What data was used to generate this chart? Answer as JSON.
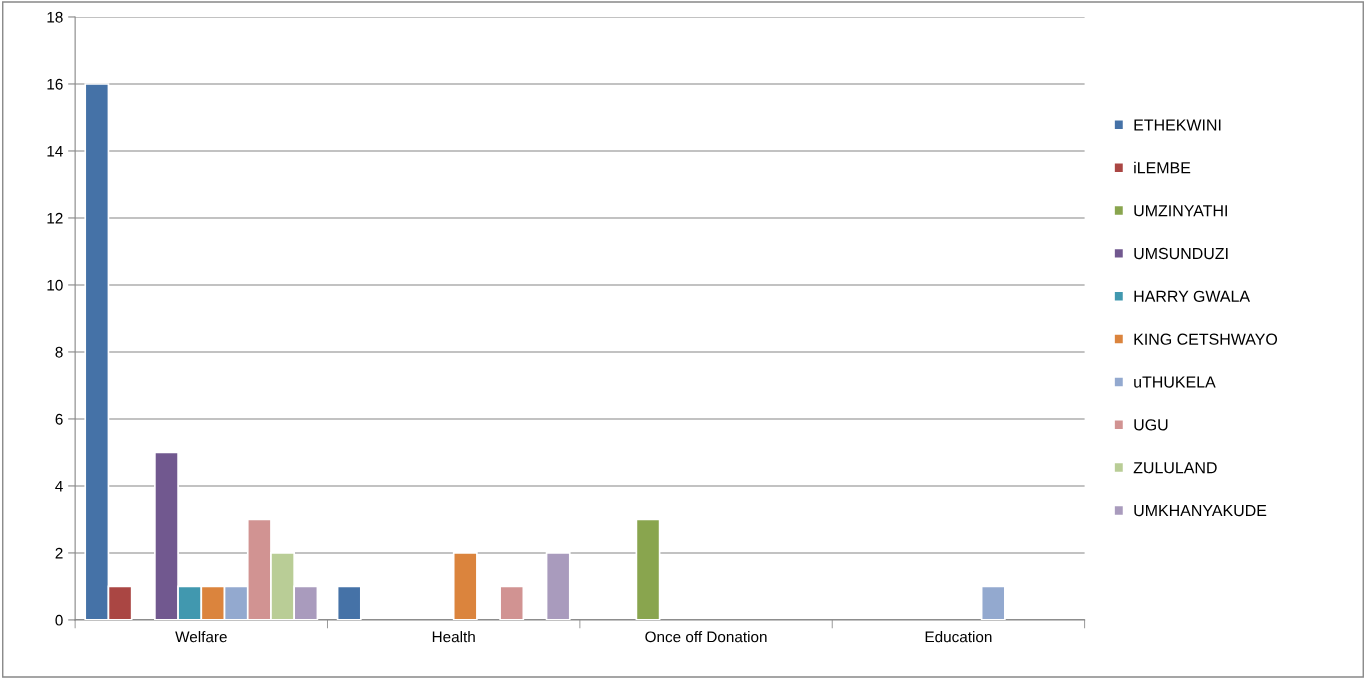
{
  "chart_data": {
    "type": "bar",
    "categories": [
      "Welfare",
      "Health",
      "Once off Donation",
      "Education"
    ],
    "series": [
      {
        "name": "ETHEKWINI",
        "color": "#4572a7",
        "values": [
          16,
          1,
          null,
          null
        ]
      },
      {
        "name": "iLEMBE",
        "color": "#aa4643",
        "values": [
          1,
          null,
          null,
          null
        ]
      },
      {
        "name": "UMZINYATHI",
        "color": "#89a54e",
        "values": [
          null,
          null,
          3,
          null
        ]
      },
      {
        "name": "UMSUNDUZI",
        "color": "#71588f",
        "values": [
          5,
          null,
          null,
          null
        ]
      },
      {
        "name": "HARRY GWALA",
        "color": "#4198af",
        "values": [
          1,
          null,
          null,
          null
        ]
      },
      {
        "name": "KING CETSHWAYO",
        "color": "#db843d",
        "values": [
          1,
          2,
          null,
          null
        ]
      },
      {
        "name": "uTHUKELA",
        "color": "#93a9cf",
        "values": [
          1,
          null,
          null,
          1
        ]
      },
      {
        "name": "UGU",
        "color": "#d19392",
        "values": [
          3,
          1,
          null,
          null
        ]
      },
      {
        "name": "ZULULAND",
        "color": "#b9cd96",
        "values": [
          2,
          null,
          null,
          null
        ]
      },
      {
        "name": "UMKHANYAKUDE",
        "color": "#a99bbd",
        "values": [
          1,
          2,
          null,
          null
        ]
      }
    ],
    "ylim": [
      0,
      18
    ],
    "yticks": [
      0,
      2,
      4,
      6,
      8,
      10,
      12,
      14,
      16,
      18
    ],
    "grid": "y",
    "legend": "right"
  }
}
